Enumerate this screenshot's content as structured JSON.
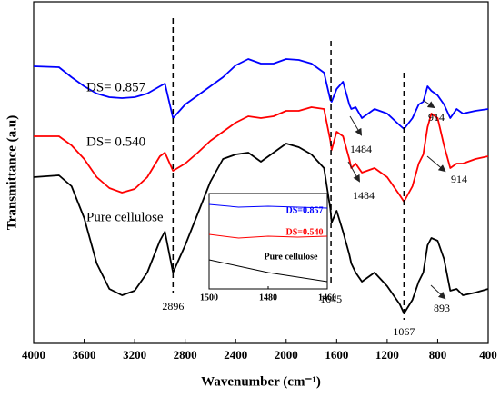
{
  "chart_data": [
    {
      "type": "line",
      "xlabel": "Wavenumber (cm⁻¹)",
      "ylabel": "Transmittance (a.u)",
      "xlim": [
        4000,
        400
      ],
      "xticks": [
        4000,
        3600,
        3200,
        2800,
        2400,
        2000,
        1600,
        1200,
        800,
        400
      ],
      "ylim": [
        0,
        376
      ],
      "x": [
        4000,
        3800,
        3700,
        3600,
        3500,
        3400,
        3300,
        3200,
        3100,
        3000,
        2960,
        2896,
        2800,
        2700,
        2600,
        2500,
        2400,
        2300,
        2200,
        2100,
        2000,
        1900,
        1800,
        1700,
        1650,
        1640,
        1600,
        1550,
        1500,
        1484,
        1450,
        1400,
        1300,
        1200,
        1100,
        1067,
        1000,
        950,
        914,
        880,
        850,
        800,
        750,
        700,
        650,
        600,
        500,
        400
      ],
      "series": [
        {
          "name": "DS= 0.857",
          "color": "#0000ff",
          "values": [
            305,
            304,
            293,
            283,
            275,
            271,
            270,
            271,
            275,
            283,
            286,
            248,
            263,
            273,
            283,
            293,
            306,
            313,
            308,
            308,
            313,
            312,
            308,
            298,
            268,
            266,
            280,
            288,
            263,
            258,
            260,
            248,
            258,
            253,
            240,
            236,
            248,
            263,
            266,
            283,
            278,
            273,
            263,
            248,
            258,
            253,
            256,
            258
          ]
        },
        {
          "name": "DS= 0.540",
          "color": "#ff0000",
          "values": [
            228,
            228,
            218,
            203,
            183,
            171,
            166,
            170,
            183,
            206,
            210,
            190,
            198,
            210,
            223,
            233,
            243,
            250,
            248,
            250,
            256,
            256,
            260,
            258,
            223,
            213,
            233,
            228,
            203,
            193,
            198,
            188,
            193,
            183,
            163,
            156,
            173,
            198,
            208,
            238,
            253,
            248,
            218,
            193,
            198,
            198,
            203,
            206
          ]
        },
        {
          "name": "Pure cellulose",
          "color": "#000000",
          "values": [
            183,
            185,
            173,
            138,
            88,
            60,
            53,
            58,
            78,
            113,
            123,
            78,
            108,
            143,
            178,
            203,
            208,
            210,
            200,
            210,
            220,
            216,
            208,
            193,
            148,
            133,
            146,
            123,
            98,
            88,
            78,
            68,
            78,
            63,
            43,
            33,
            48,
            68,
            78,
            108,
            116,
            113,
            93,
            58,
            60,
            53,
            56,
            60
          ]
        }
      ],
      "dashed_peaks": [
        2896,
        1645,
        1067
      ],
      "arrow_peaks": [
        1484,
        1484,
        914,
        914,
        893
      ]
    },
    {
      "type": "line",
      "xlim": [
        1500,
        1460
      ],
      "xticks": [
        1500,
        1480,
        1460
      ],
      "ylim": [
        0,
        105
      ],
      "x": [
        1500,
        1490,
        1480,
        1470,
        1460
      ],
      "series": [
        {
          "name": "DS=0.857",
          "color": "#0000ff",
          "values": [
            93,
            90,
            91,
            90,
            89
          ]
        },
        {
          "name": "DS=0.540",
          "color": "#ff0000",
          "values": [
            60,
            56,
            58,
            57,
            58
          ]
        },
        {
          "name": "Pure cellulose",
          "color": "#000000",
          "values": [
            32,
            25,
            18,
            13,
            8
          ]
        }
      ]
    }
  ]
}
